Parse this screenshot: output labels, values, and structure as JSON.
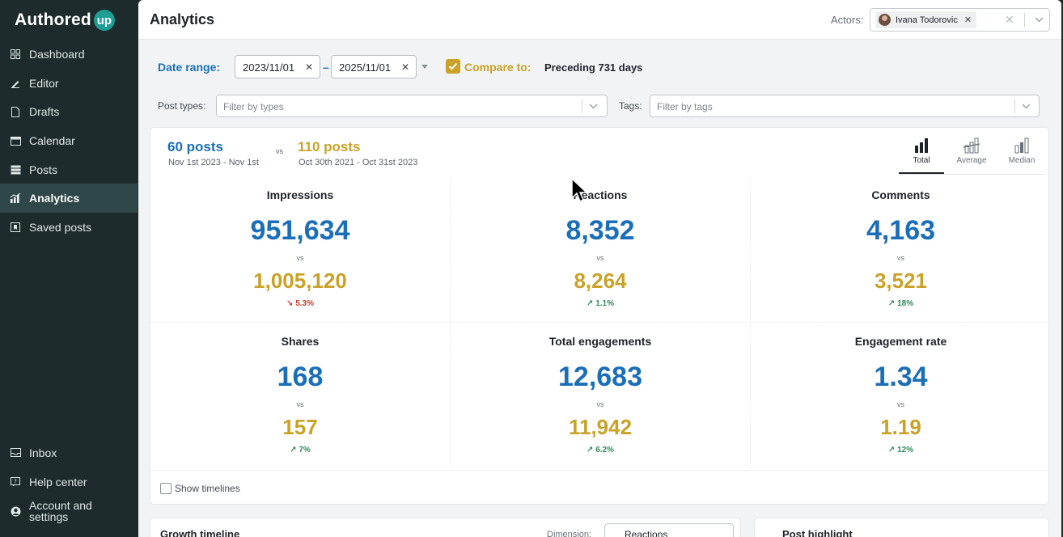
{
  "app": {
    "logo_text": "Authored",
    "logo_badge": "up"
  },
  "sidebar": {
    "items": [
      {
        "label": "Dashboard",
        "icon": "dashboard-icon"
      },
      {
        "label": "Editor",
        "icon": "pen-icon"
      },
      {
        "label": "Drafts",
        "icon": "document-icon"
      },
      {
        "label": "Calendar",
        "icon": "calendar-icon"
      },
      {
        "label": "Posts",
        "icon": "stack-icon"
      },
      {
        "label": "Analytics",
        "icon": "chart-icon",
        "active": true
      },
      {
        "label": "Saved posts",
        "icon": "bookmark-icon"
      }
    ],
    "bottom_items": [
      {
        "label": "Inbox",
        "icon": "inbox-icon"
      },
      {
        "label": "Help center",
        "icon": "help-icon"
      },
      {
        "label_line1": "Account and",
        "label_line2": "settings",
        "icon": "account-icon"
      }
    ]
  },
  "header": {
    "title": "Analytics",
    "actors_label": "Actors:",
    "actor_chip": "Ivana Todorovic"
  },
  "filters": {
    "date_range_label": "Date range:",
    "date_from": "2023/11/01",
    "date_to": "2025/11/01",
    "dash": "–",
    "compare_label": "Compare to:",
    "compare_value": "Preceding 731 days",
    "post_types_label": "Post types:",
    "post_types_placeholder": "Filter by types",
    "tags_label": "Tags:",
    "tags_placeholder": "Filter by tags"
  },
  "summary": {
    "current_count": "60 posts",
    "current_range": "Nov 1st 2023 - Nov 1st",
    "vs": "vs",
    "previous_count": "110 posts",
    "previous_range": "Oct 30th 2021 - Oct 31st 2023",
    "modes": [
      {
        "label": "Total",
        "active": true
      },
      {
        "label": "Average",
        "active": false
      },
      {
        "label": "Median",
        "active": false
      }
    ]
  },
  "metrics": [
    {
      "title": "Impressions",
      "current": "951,634",
      "vs": "vs",
      "previous": "1,005,120",
      "delta": "5.3%",
      "direction": "down"
    },
    {
      "title": "Reactions",
      "current": "8,352",
      "vs": "vs",
      "previous": "8,264",
      "delta": "1.1%",
      "direction": "up"
    },
    {
      "title": "Comments",
      "current": "4,163",
      "vs": "vs",
      "previous": "3,521",
      "delta": "18%",
      "direction": "up"
    },
    {
      "title": "Shares",
      "current": "168",
      "vs": "vs",
      "previous": "157",
      "delta": "7%",
      "direction": "up"
    },
    {
      "title": "Total engagements",
      "current": "12,683",
      "vs": "vs",
      "previous": "11,942",
      "delta": "6.2%",
      "direction": "up"
    },
    {
      "title": "Engagement rate",
      "current": "1.34",
      "vs": "vs",
      "previous": "1.19",
      "delta": "12%",
      "direction": "up"
    }
  ],
  "show_timelines_label": "Show timelines",
  "lower": {
    "growth_title": "Growth timeline",
    "dimension_label": "Dimension:",
    "dimension_value": "Reactions",
    "highlight_title": "Post highlight"
  },
  "colors": {
    "current": "#1b6fb8",
    "previous": "#c9a227",
    "sidebar_bg": "#1d2b2c",
    "delta_up": "#2e8b57",
    "delta_down": "#c0392b"
  }
}
